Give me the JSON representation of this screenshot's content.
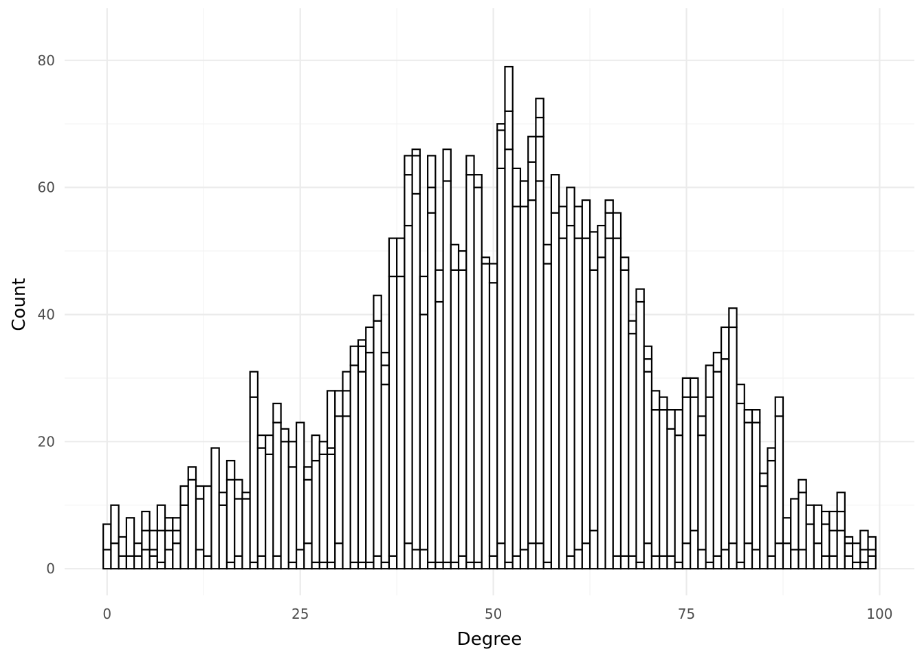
{
  "chart_data": {
    "type": "bar",
    "title": "",
    "xlabel": "Degree",
    "ylabel": "Count",
    "xlim": [
      -5.5,
      104.5
    ],
    "ylim": [
      -4.2,
      88.2
    ],
    "x_breaks": [
      0,
      25,
      50,
      75,
      100
    ],
    "x_tick_labels": [
      "0",
      "25",
      "50",
      "75",
      "100"
    ],
    "y_breaks": [
      0,
      20,
      40,
      60,
      80
    ],
    "y_tick_labels": [
      "0",
      "20",
      "40",
      "60",
      "80"
    ],
    "bin_width": 1,
    "bin_start": 0,
    "stacked": true,
    "fill_color": "#ffffff",
    "outline_color": "#000000",
    "grid": true,
    "series": [
      {
        "values": [
          3,
          0,
          2,
          0,
          2,
          3,
          2,
          1,
          3,
          4,
          0,
          0,
          3,
          2,
          0,
          0,
          1,
          2,
          0,
          1,
          2,
          0,
          2,
          0,
          1,
          3,
          4,
          1,
          1,
          1,
          4,
          0,
          1,
          1,
          1,
          2,
          1,
          2,
          0,
          4,
          3,
          3,
          1,
          1,
          1,
          1,
          2,
          1,
          1,
          0,
          2,
          4,
          1,
          2,
          3,
          4,
          4,
          1,
          0,
          0,
          2,
          3,
          4,
          6,
          0,
          0,
          2,
          2,
          2,
          1,
          4,
          2,
          2,
          2,
          1,
          4,
          6,
          3,
          1,
          2,
          3,
          4,
          1,
          4,
          3,
          0,
          2,
          4,
          4,
          3,
          3,
          0,
          4,
          2,
          2,
          6,
          2,
          1,
          1,
          2
        ]
      },
      {
        "values": [
          0,
          4,
          0,
          2,
          0,
          0,
          1,
          0,
          0,
          0,
          10,
          14,
          8,
          0,
          19,
          10,
          13,
          9,
          11,
          26,
          17,
          18,
          21,
          20,
          15,
          20,
          10,
          16,
          17,
          17,
          20,
          24,
          31,
          30,
          33,
          37,
          28,
          44,
          46,
          50,
          56,
          37,
          55,
          41,
          60,
          46,
          45,
          61,
          59,
          48,
          43,
          59,
          65,
          55,
          54,
          54,
          57,
          47,
          56,
          52,
          52,
          49,
          48,
          41,
          49,
          52,
          50,
          45,
          35,
          41,
          27,
          23,
          23,
          20,
          20,
          23,
          21,
          18,
          26,
          29,
          30,
          34,
          25,
          19,
          20,
          13,
          15,
          20,
          0,
          8,
          9,
          7,
          0,
          5,
          4,
          3,
          2,
          0,
          2,
          1
        ]
      },
      {
        "values": [
          4,
          6,
          3,
          6,
          2,
          3,
          3,
          5,
          3,
          2,
          3,
          2,
          2,
          11,
          0,
          2,
          3,
          3,
          1,
          4,
          2,
          3,
          3,
          2,
          4,
          0,
          2,
          4,
          2,
          1,
          4,
          4,
          3,
          4,
          4,
          4,
          3,
          6,
          6,
          8,
          6,
          6,
          4,
          5,
          5,
          4,
          3,
          3,
          2,
          1,
          3,
          6,
          6,
          6,
          4,
          6,
          7,
          3,
          6,
          5,
          6,
          5,
          6,
          6,
          5,
          4,
          4,
          2,
          2,
          2,
          2,
          3,
          2,
          3,
          4,
          3,
          3,
          3,
          5,
          3,
          5,
          3,
          3,
          2,
          2,
          2,
          2,
          3,
          4,
          0,
          2,
          3,
          6,
          2,
          3,
          3,
          1,
          3,
          3,
          2
        ]
      },
      {
        "values": [
          0,
          0,
          0,
          0,
          0,
          3,
          0,
          4,
          2,
          2,
          0,
          0,
          0,
          0,
          0,
          0,
          0,
          0,
          0,
          0,
          0,
          0,
          0,
          0,
          0,
          0,
          0,
          0,
          0,
          9,
          0,
          3,
          0,
          1,
          0,
          0,
          2,
          0,
          0,
          0,
          0,
          0,
          5,
          0,
          0,
          0,
          0,
          0,
          0,
          0,
          0,
          0,
          0,
          0,
          0,
          0,
          3,
          0,
          0,
          0,
          0,
          0,
          0,
          0,
          0,
          2,
          0,
          0,
          0,
          0,
          2,
          0,
          0,
          0,
          0,
          0,
          0,
          0,
          0,
          0,
          0,
          0,
          0,
          0,
          0,
          0,
          0,
          0,
          0,
          0,
          0,
          0,
          0,
          0,
          0,
          0,
          0,
          0,
          0,
          0
        ]
      },
      {
        "values": [
          0,
          0,
          0,
          0,
          0,
          0,
          0,
          0,
          0,
          0,
          0,
          0,
          0,
          0,
          0,
          0,
          0,
          0,
          0,
          0,
          0,
          0,
          0,
          0,
          0,
          0,
          0,
          0,
          0,
          0,
          0,
          0,
          0,
          0,
          0,
          0,
          0,
          0,
          0,
          3,
          1,
          0,
          0,
          0,
          0,
          0,
          0,
          0,
          0,
          0,
          0,
          1,
          7,
          0,
          0,
          4,
          0,
          0,
          0,
          0,
          0,
          0,
          0,
          0,
          0,
          0,
          0,
          0,
          0,
          0,
          0,
          0,
          0,
          0,
          0,
          0,
          0,
          0,
          0,
          0,
          0,
          0,
          0,
          0,
          0,
          0,
          0,
          0,
          0,
          0,
          0,
          0,
          0,
          0,
          0,
          0,
          0,
          0,
          0,
          0
        ]
      },
      {
        "values": [
          0,
          0,
          0,
          0,
          0,
          0,
          0,
          0,
          0,
          0,
          0,
          0,
          0,
          0,
          0,
          0,
          0,
          0,
          0,
          0,
          0,
          0,
          0,
          0,
          0,
          0,
          0,
          0,
          0,
          0,
          0,
          0,
          0,
          0,
          0,
          0,
          0,
          0,
          0,
          0,
          0,
          0,
          0,
          0,
          0,
          0,
          0,
          0,
          0,
          0,
          0,
          0,
          0,
          0,
          0,
          0,
          3,
          0,
          0,
          0,
          0,
          0,
          0,
          0,
          0,
          0,
          0,
          0,
          0,
          0,
          0,
          0,
          0,
          0,
          0,
          0,
          0,
          0,
          0,
          0,
          0,
          0,
          0,
          0,
          0,
          0,
          0,
          0,
          0,
          0,
          0,
          0,
          0,
          0,
          0,
          0,
          0,
          0,
          0,
          0
        ]
      }
    ]
  }
}
